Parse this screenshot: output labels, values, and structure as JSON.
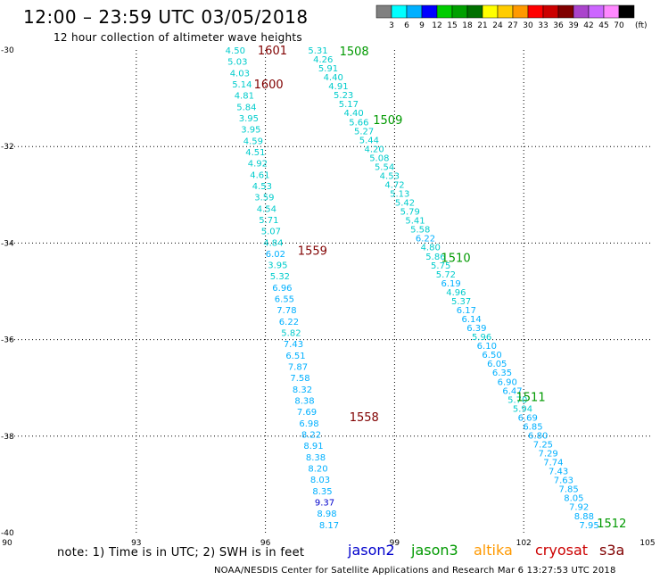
{
  "title": "12:00 – 23:59 UTC 03/05/2018",
  "subtitle": "12 hour collection of altimeter wave heights",
  "footer_note": "note:  1) Time is in UTC;  2) SWH is in feet",
  "footer_credit": "NOAA/NESDIS Center for Satellite Applications and Research     Mar  6 13:27:53 UTC 2018",
  "satellites": [
    {
      "name": "jason2",
      "color": "#0000cc"
    },
    {
      "name": "jason3",
      "color": "#009900"
    },
    {
      "name": "altika",
      "color": "#ff9900"
    },
    {
      "name": "cryosat",
      "color": "#cc0000"
    },
    {
      "name": "s3a",
      "color": "#800000"
    }
  ],
  "colorbar": {
    "unit": "(ft)",
    "labels": [
      "3",
      "6",
      "9",
      "12",
      "15",
      "18",
      "21",
      "24",
      "27",
      "30",
      "33",
      "36",
      "39",
      "42",
      "45",
      "70"
    ],
    "colors": [
      "#808080",
      "#00ffff",
      "#00b0ff",
      "#0000ff",
      "#00cc00",
      "#00a000",
      "#007000",
      "#ffff00",
      "#ffcc00",
      "#ff9900",
      "#ff0000",
      "#cc0000",
      "#800000",
      "#aa44cc",
      "#cc66ff",
      "#ff88ff",
      "#000000"
    ]
  },
  "chart_data": {
    "type": "scatter",
    "x_ticks": [
      "90",
      "93",
      "96",
      "99",
      "102",
      "105"
    ],
    "y_ticks": [
      "-30",
      "-32",
      "-34",
      "-36",
      "-38",
      "-40"
    ],
    "xlim": [
      90,
      105
    ],
    "ylim": [
      -40,
      -30
    ],
    "grid": "dotted",
    "time_labels": [
      {
        "text": "1601",
        "x": 95.82,
        "y": -30.0,
        "color": "#800000"
      },
      {
        "text": "1600",
        "x": 95.73,
        "y": -30.7,
        "color": "#800000"
      },
      {
        "text": "1559",
        "x": 96.75,
        "y": -34.15,
        "color": "#800000"
      },
      {
        "text": "1558",
        "x": 97.95,
        "y": -37.6,
        "color": "#800000"
      },
      {
        "text": "1508",
        "x": 97.72,
        "y": -30.02,
        "color": "#009900"
      },
      {
        "text": "1509",
        "x": 98.5,
        "y": -31.44,
        "color": "#009900"
      },
      {
        "text": "1510",
        "x": 100.08,
        "y": -34.3,
        "color": "#009900"
      },
      {
        "text": "1511",
        "x": 101.82,
        "y": -37.18,
        "color": "#009900"
      },
      {
        "text": "1512",
        "x": 103.7,
        "y": -39.8,
        "color": "#009900"
      }
    ],
    "series": [
      {
        "name": "s3a",
        "color": "#00cccc",
        "x_start": 95.3,
        "x_end": 97.48,
        "y_start": -30.0,
        "y_end": -39.83,
        "values": [
          "4.50",
          "5.03",
          "4.03",
          "5.14",
          "4.81",
          "5.84",
          "3.95",
          "3.95",
          "4.59",
          "4.51",
          "4.92",
          "4.61",
          "4.53",
          "3.59",
          "4.54",
          "5.71",
          "5.07",
          "4.84",
          "6.02",
          "3.95",
          "5.32",
          "6.96",
          "6.55",
          "7.78",
          "6.22",
          "5.82",
          "7.43",
          "6.51",
          "7.87",
          "7.58",
          "8.32",
          "8.38",
          "7.69",
          "6.98",
          "8.22",
          "8.91",
          "8.38",
          "8.20",
          "8.03",
          "8.35",
          "9.37",
          "8.98",
          "8.17"
        ]
      },
      {
        "name": "jason3",
        "color": "#00cccc",
        "x_start": 97.22,
        "x_end": 103.52,
        "y_start": -30.0,
        "y_end": -39.83,
        "values": [
          "5.31",
          "4.26",
          "5.91",
          "4.40",
          "4.91",
          "5.23",
          "5.17",
          "4.40",
          "5.66",
          "5.27",
          "5.44",
          "4.20",
          "5.08",
          "5.54",
          "4.53",
          "4.72",
          "5.13",
          "5.42",
          "5.79",
          "5.41",
          "5.58",
          "6.22",
          "4.80",
          "5.86",
          "5.75",
          "5.72",
          "6.19",
          "4.96",
          "5.37",
          "6.17",
          "6.14",
          "6.39",
          "5.96",
          "6.10",
          "6.50",
          "6.05",
          "6.35",
          "6.90",
          "6.47",
          "5.70",
          "5.94",
          "6.69",
          "6.85",
          "6.80",
          "7.25",
          "7.29",
          "7.74",
          "7.43",
          "7.63",
          "7.85",
          "8.05",
          "7.92",
          "8.88",
          "7.95"
        ]
      }
    ]
  }
}
